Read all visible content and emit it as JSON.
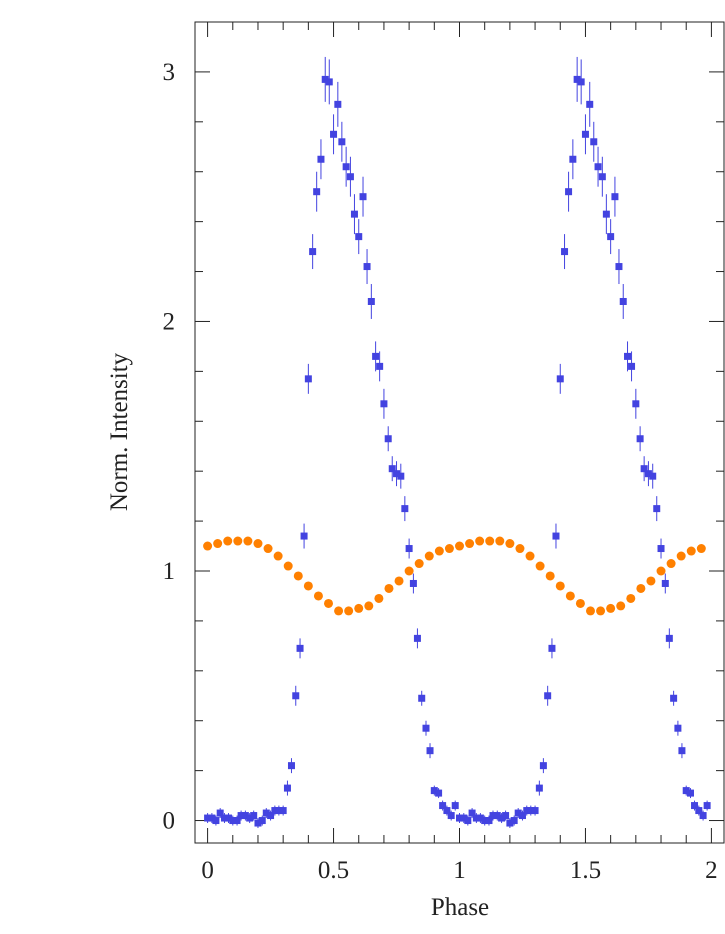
{
  "chart_data": {
    "type": "scatter",
    "xlabel": "Phase",
    "ylabel": "Norm. Intensity",
    "xlim": [
      -0.05,
      2.05
    ],
    "ylim": [
      -0.09,
      3.2
    ],
    "xticks": [
      0,
      0.5,
      1,
      1.5,
      2
    ],
    "yticks": [
      0,
      1,
      2,
      3
    ],
    "xminorticks": [
      0.1,
      0.2,
      0.3,
      0.4,
      0.6,
      0.7,
      0.8,
      0.9,
      1.1,
      1.2,
      1.3,
      1.4,
      1.6,
      1.7,
      1.8,
      1.9
    ],
    "yminorticks": [
      0.2,
      0.4,
      0.6,
      0.8,
      1.2,
      1.4,
      1.6,
      1.8,
      2.2,
      2.4,
      2.6,
      2.8,
      3.2
    ],
    "series": [
      {
        "color": "#4343e0",
        "marker": "square",
        "x": [
          0,
          0.017,
          0.033,
          0.05,
          0.067,
          0.083,
          0.1,
          0.117,
          0.133,
          0.15,
          0.167,
          0.183,
          0.2,
          0.217,
          0.233,
          0.25,
          0.267,
          0.283,
          0.3,
          0.317,
          0.333,
          0.35,
          0.367,
          0.383,
          0.4,
          0.417,
          0.433,
          0.45,
          0.467,
          0.483,
          0.5,
          0.517,
          0.533,
          0.55,
          0.567,
          0.583,
          0.6,
          0.617,
          0.633,
          0.65,
          0.667,
          0.683,
          0.7,
          0.717,
          0.733,
          0.75,
          0.767,
          0.783,
          0.8,
          0.817,
          0.833,
          0.85,
          0.867,
          0.883,
          0.9,
          0.917,
          0.933,
          0.95,
          0.967,
          0.983,
          1,
          1.017,
          1.033,
          1.05,
          1.067,
          1.083,
          1.1,
          1.117,
          1.133,
          1.15,
          1.167,
          1.183,
          1.2,
          1.217,
          1.233,
          1.25,
          1.267,
          1.283,
          1.3,
          1.317,
          1.333,
          1.35,
          1.367,
          1.383,
          1.4,
          1.417,
          1.433,
          1.45,
          1.467,
          1.483,
          1.5,
          1.517,
          1.533,
          1.55,
          1.567,
          1.583,
          1.6,
          1.617,
          1.633,
          1.65,
          1.667,
          1.683,
          1.7,
          1.717,
          1.733,
          1.75,
          1.767,
          1.783,
          1.8,
          1.817,
          1.833,
          1.85,
          1.867,
          1.883,
          1.9,
          1.917,
          1.933,
          1.95,
          1.967,
          1.983
        ],
        "values": [
          0.01,
          0.01,
          0.0,
          0.03,
          0.01,
          0.01,
          0.0,
          0.0,
          0.02,
          0.02,
          0.01,
          0.02,
          -0.01,
          0.0,
          0.03,
          0.02,
          0.04,
          0.04,
          0.04,
          0.13,
          0.22,
          0.5,
          0.69,
          1.14,
          1.77,
          2.28,
          2.52,
          2.65,
          2.97,
          2.96,
          2.75,
          2.87,
          2.72,
          2.62,
          2.58,
          2.43,
          2.34,
          2.5,
          2.22,
          2.08,
          1.86,
          1.82,
          1.67,
          1.53,
          1.41,
          1.39,
          1.38,
          1.25,
          1.09,
          0.95,
          0.73,
          0.49,
          0.37,
          0.28,
          0.12,
          0.11,
          0.06,
          0.04,
          0.02,
          0.06,
          0.01,
          0.01,
          0.0,
          0.03,
          0.01,
          0.01,
          0.0,
          0.0,
          0.02,
          0.02,
          0.01,
          0.02,
          -0.01,
          0.0,
          0.03,
          0.02,
          0.04,
          0.04,
          0.04,
          0.13,
          0.22,
          0.5,
          0.69,
          1.14,
          1.77,
          2.28,
          2.52,
          2.65,
          2.97,
          2.96,
          2.75,
          2.87,
          2.72,
          2.62,
          2.58,
          2.43,
          2.34,
          2.5,
          2.22,
          2.08,
          1.86,
          1.82,
          1.67,
          1.53,
          1.41,
          1.39,
          1.38,
          1.25,
          1.09,
          0.95,
          0.73,
          0.49,
          0.37,
          0.28,
          0.12,
          0.11,
          0.06,
          0.04,
          0.02,
          0.06
        ],
        "errors": [
          0.02,
          0.02,
          0.02,
          0.02,
          0.02,
          0.02,
          0.02,
          0.02,
          0.02,
          0.02,
          0.02,
          0.02,
          0.02,
          0.02,
          0.02,
          0.02,
          0.02,
          0.02,
          0.02,
          0.03,
          0.03,
          0.04,
          0.04,
          0.05,
          0.06,
          0.07,
          0.08,
          0.08,
          0.09,
          0.09,
          0.08,
          0.09,
          0.08,
          0.08,
          0.08,
          0.08,
          0.07,
          0.08,
          0.07,
          0.07,
          0.06,
          0.06,
          0.06,
          0.05,
          0.05,
          0.05,
          0.05,
          0.05,
          0.04,
          0.04,
          0.04,
          0.03,
          0.03,
          0.03,
          0.02,
          0.02,
          0.02,
          0.02,
          0.02,
          0.02,
          0.02,
          0.02,
          0.02,
          0.02,
          0.02,
          0.02,
          0.02,
          0.02,
          0.02,
          0.02,
          0.02,
          0.02,
          0.02,
          0.02,
          0.02,
          0.02,
          0.02,
          0.02,
          0.02,
          0.03,
          0.03,
          0.04,
          0.04,
          0.05,
          0.06,
          0.07,
          0.08,
          0.08,
          0.09,
          0.09,
          0.08,
          0.09,
          0.08,
          0.08,
          0.08,
          0.08,
          0.07,
          0.08,
          0.07,
          0.07,
          0.06,
          0.06,
          0.06,
          0.05,
          0.05,
          0.05,
          0.05,
          0.05,
          0.04,
          0.04,
          0.04,
          0.03,
          0.03,
          0.03,
          0.02,
          0.02,
          0.02,
          0.02,
          0.02,
          0.02
        ]
      },
      {
        "color": "#ff8000",
        "marker": "circle",
        "x": [
          0,
          0.04,
          0.08,
          0.12,
          0.16,
          0.2,
          0.24,
          0.28,
          0.32,
          0.36,
          0.4,
          0.44,
          0.48,
          0.52,
          0.56,
          0.6,
          0.64,
          0.68,
          0.72,
          0.76,
          0.8,
          0.84,
          0.88,
          0.92,
          0.96,
          1,
          1.04,
          1.08,
          1.12,
          1.16,
          1.2,
          1.24,
          1.28,
          1.32,
          1.36,
          1.4,
          1.44,
          1.48,
          1.52,
          1.56,
          1.6,
          1.64,
          1.68,
          1.72,
          1.76,
          1.8,
          1.84,
          1.88,
          1.92,
          1.96
        ],
        "values": [
          1.1,
          1.11,
          1.12,
          1.12,
          1.12,
          1.11,
          1.09,
          1.06,
          1.02,
          0.98,
          0.94,
          0.9,
          0.87,
          0.84,
          0.84,
          0.85,
          0.86,
          0.89,
          0.93,
          0.96,
          1.0,
          1.03,
          1.06,
          1.08,
          1.09,
          1.1,
          1.11,
          1.12,
          1.12,
          1.12,
          1.11,
          1.09,
          1.06,
          1.02,
          0.98,
          0.94,
          0.9,
          0.87,
          0.84,
          0.84,
          0.85,
          0.86,
          0.89,
          0.93,
          0.96,
          1.0,
          1.03,
          1.06,
          1.08,
          1.09
        ]
      }
    ]
  }
}
